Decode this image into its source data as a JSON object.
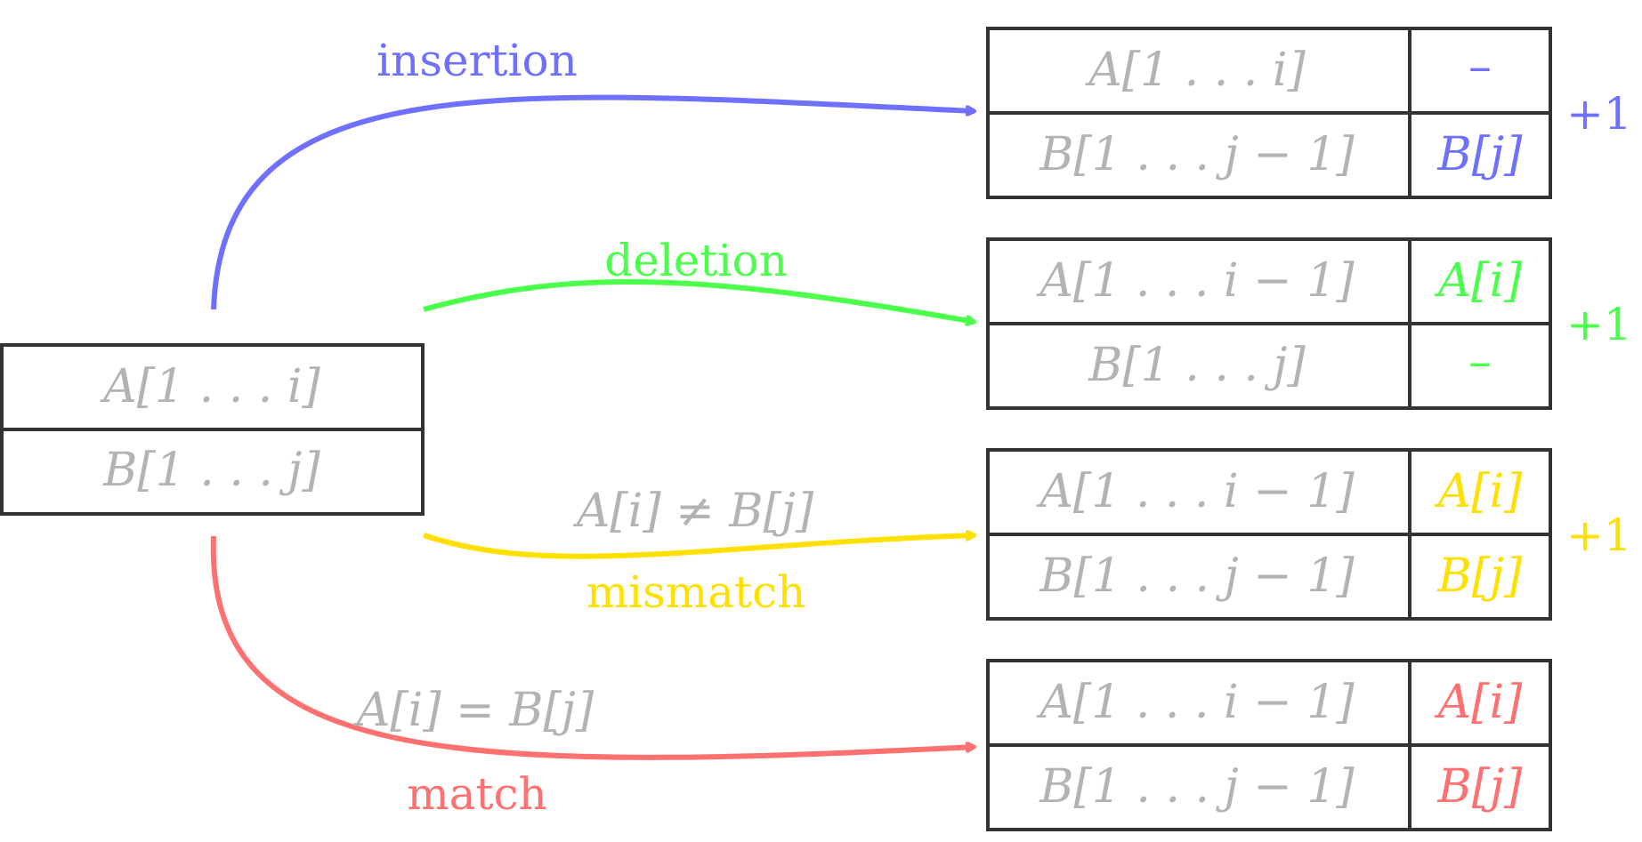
{
  "colors": {
    "insertion": "#7070ff",
    "deletion": "#4cff4c",
    "mismatch": "#ffe000",
    "match": "#ff7070",
    "gray_text": "#b3b3b3",
    "box_stroke": "#333333"
  },
  "source": {
    "row_a": "A[1 . . . i]",
    "row_b": "B[1 . . . j]"
  },
  "edges": {
    "insertion": {
      "label": "insertion"
    },
    "deletion": {
      "label": "deletion"
    },
    "mismatch": {
      "label": "mismatch",
      "condition": "A[i] ≠ B[j]"
    },
    "match": {
      "label": "match",
      "condition": "A[i] = B[j]"
    }
  },
  "targets": {
    "insertion": {
      "row1_left": "A[1 . . . i]",
      "row1_right": "–",
      "row2_left": "B[1 . . . j − 1]",
      "row2_right": "B[j]",
      "cost": "+1"
    },
    "deletion": {
      "row1_left": "A[1 . . . i − 1]",
      "row1_right": "A[i]",
      "row2_left": "B[1 . . . j]",
      "row2_right": "–",
      "cost": "+1"
    },
    "mismatch": {
      "row1_left": "A[1 . . . i − 1]",
      "row1_right": "A[i]",
      "row2_left": "B[1 . . . j − 1]",
      "row2_right": "B[j]",
      "cost": "+1"
    },
    "match": {
      "row1_left": "A[1 . . . i − 1]",
      "row1_right": "A[i]",
      "row2_left": "B[1 . . . j − 1]",
      "row2_right": "B[j]"
    }
  }
}
